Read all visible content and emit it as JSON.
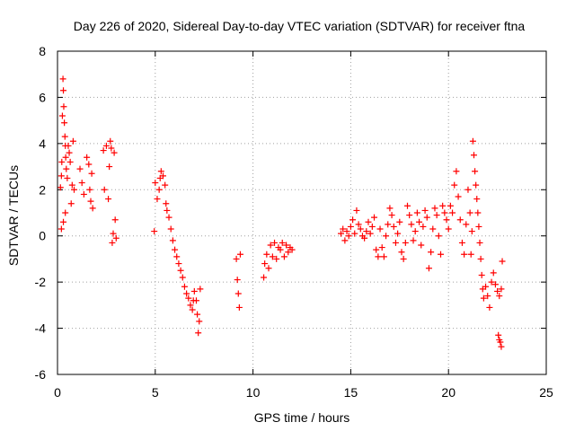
{
  "chart_data": {
    "type": "scatter",
    "title": "Day 226 of 2020, Sidereal Day-to-day VTEC variation (SDTVAR) for receiver ftna",
    "xlabel": "GPS time / hours",
    "ylabel": "SDTVAR / TECUs",
    "xlim": [
      0,
      25
    ],
    "ylim": [
      -6,
      8
    ],
    "xticks": [
      0,
      5,
      10,
      15,
      20,
      25
    ],
    "yticks": [
      -6,
      -4,
      -2,
      0,
      2,
      4,
      6,
      8
    ],
    "grid": true,
    "marker": "plus",
    "color": "#ff0000",
    "series": [
      {
        "name": "SDTVAR",
        "points": [
          [
            0.15,
            2.1
          ],
          [
            0.2,
            2.6
          ],
          [
            0.22,
            3.2
          ],
          [
            0.25,
            5.2
          ],
          [
            0.28,
            6.8
          ],
          [
            0.3,
            6.3
          ],
          [
            0.32,
            5.6
          ],
          [
            0.35,
            4.9
          ],
          [
            0.38,
            4.3
          ],
          [
            0.4,
            3.9
          ],
          [
            0.42,
            3.4
          ],
          [
            0.45,
            2.9
          ],
          [
            0.2,
            0.3
          ],
          [
            0.3,
            0.6
          ],
          [
            0.4,
            1.0
          ],
          [
            0.5,
            2.5
          ],
          [
            0.55,
            3.9
          ],
          [
            0.6,
            3.6
          ],
          [
            0.65,
            3.2
          ],
          [
            0.7,
            1.4
          ],
          [
            0.75,
            2.2
          ],
          [
            0.8,
            4.1
          ],
          [
            0.85,
            2.0
          ],
          [
            1.15,
            2.9
          ],
          [
            1.25,
            2.3
          ],
          [
            1.35,
            1.8
          ],
          [
            1.5,
            3.4
          ],
          [
            1.6,
            3.1
          ],
          [
            1.65,
            2.0
          ],
          [
            1.7,
            1.5
          ],
          [
            1.75,
            2.7
          ],
          [
            1.8,
            1.2
          ],
          [
            2.35,
            3.7
          ],
          [
            2.4,
            2.0
          ],
          [
            2.5,
            3.9
          ],
          [
            2.6,
            1.6
          ],
          [
            2.65,
            3.0
          ],
          [
            2.7,
            4.1
          ],
          [
            2.75,
            3.8
          ],
          [
            2.8,
            -0.3
          ],
          [
            2.85,
            0.1
          ],
          [
            2.9,
            3.6
          ],
          [
            2.95,
            0.7
          ],
          [
            3.0,
            -0.1
          ],
          [
            4.95,
            0.2
          ],
          [
            5.0,
            2.3
          ],
          [
            5.1,
            1.6
          ],
          [
            5.2,
            2.0
          ],
          [
            5.25,
            2.5
          ],
          [
            5.3,
            2.8
          ],
          [
            5.4,
            2.6
          ],
          [
            5.5,
            2.2
          ],
          [
            5.55,
            1.4
          ],
          [
            5.6,
            1.1
          ],
          [
            5.7,
            0.8
          ],
          [
            5.8,
            0.3
          ],
          [
            5.9,
            -0.2
          ],
          [
            6.0,
            -0.6
          ],
          [
            6.1,
            -0.9
          ],
          [
            6.2,
            -1.2
          ],
          [
            6.3,
            -1.5
          ],
          [
            6.4,
            -1.8
          ],
          [
            6.5,
            -2.2
          ],
          [
            6.6,
            -2.5
          ],
          [
            6.7,
            -2.7
          ],
          [
            6.8,
            -3.0
          ],
          [
            6.9,
            -3.2
          ],
          [
            6.95,
            -2.8
          ],
          [
            7.0,
            -2.4
          ],
          [
            7.1,
            -2.8
          ],
          [
            7.15,
            -3.4
          ],
          [
            7.2,
            -4.2
          ],
          [
            7.25,
            -3.7
          ],
          [
            7.3,
            -2.3
          ],
          [
            9.15,
            -1.0
          ],
          [
            9.2,
            -1.9
          ],
          [
            9.25,
            -2.5
          ],
          [
            9.3,
            -3.1
          ],
          [
            9.35,
            -0.8
          ],
          [
            10.55,
            -1.8
          ],
          [
            10.6,
            -1.2
          ],
          [
            10.7,
            -0.8
          ],
          [
            10.8,
            -1.4
          ],
          [
            10.9,
            -0.4
          ],
          [
            11.0,
            -0.9
          ],
          [
            11.1,
            -0.3
          ],
          [
            11.2,
            -1.0
          ],
          [
            11.3,
            -0.5
          ],
          [
            11.4,
            -0.6
          ],
          [
            11.5,
            -0.3
          ],
          [
            11.6,
            -0.9
          ],
          [
            11.7,
            -0.4
          ],
          [
            11.8,
            -0.7
          ],
          [
            11.9,
            -0.5
          ],
          [
            12.0,
            -0.6
          ],
          [
            14.5,
            0.1
          ],
          [
            14.6,
            0.3
          ],
          [
            14.7,
            -0.2
          ],
          [
            14.8,
            0.2
          ],
          [
            14.9,
            0.0
          ],
          [
            15.0,
            0.4
          ],
          [
            15.1,
            0.7
          ],
          [
            15.2,
            0.1
          ],
          [
            15.3,
            1.1
          ],
          [
            15.4,
            0.5
          ],
          [
            15.5,
            0.3
          ],
          [
            15.6,
            0.0
          ],
          [
            15.7,
            -0.1
          ],
          [
            15.8,
            0.2
          ],
          [
            15.9,
            0.6
          ],
          [
            16.0,
            0.1
          ],
          [
            16.1,
            0.4
          ],
          [
            16.2,
            0.8
          ],
          [
            16.3,
            -0.6
          ],
          [
            16.4,
            -0.9
          ],
          [
            16.5,
            0.3
          ],
          [
            16.6,
            -0.5
          ],
          [
            16.7,
            -0.9
          ],
          [
            16.8,
            0.0
          ],
          [
            16.9,
            0.5
          ],
          [
            17.0,
            1.2
          ],
          [
            17.1,
            0.9
          ],
          [
            17.2,
            0.4
          ],
          [
            17.3,
            -0.3
          ],
          [
            17.4,
            0.1
          ],
          [
            17.5,
            0.6
          ],
          [
            17.6,
            -0.7
          ],
          [
            17.7,
            -1.0
          ],
          [
            17.8,
            -0.3
          ],
          [
            17.9,
            1.3
          ],
          [
            18.0,
            0.9
          ],
          [
            18.1,
            0.5
          ],
          [
            18.2,
            -0.2
          ],
          [
            18.3,
            0.2
          ],
          [
            18.4,
            1.0
          ],
          [
            18.5,
            0.6
          ],
          [
            18.6,
            -0.4
          ],
          [
            18.7,
            0.4
          ],
          [
            18.8,
            1.1
          ],
          [
            18.9,
            0.8
          ],
          [
            19.0,
            -1.4
          ],
          [
            19.1,
            -0.7
          ],
          [
            19.2,
            0.3
          ],
          [
            19.3,
            1.2
          ],
          [
            19.4,
            0.9
          ],
          [
            19.5,
            0.0
          ],
          [
            19.6,
            -0.8
          ],
          [
            19.7,
            1.3
          ],
          [
            19.8,
            1.0
          ],
          [
            19.9,
            0.7
          ],
          [
            20.0,
            0.3
          ],
          [
            20.1,
            1.3
          ],
          [
            20.2,
            1.0
          ],
          [
            20.3,
            2.2
          ],
          [
            20.4,
            2.8
          ],
          [
            20.5,
            1.7
          ],
          [
            20.6,
            0.7
          ],
          [
            20.7,
            -0.3
          ],
          [
            20.8,
            -0.8
          ],
          [
            20.9,
            0.5
          ],
          [
            21.0,
            2.0
          ],
          [
            21.1,
            1.0
          ],
          [
            21.15,
            -0.8
          ],
          [
            21.2,
            0.2
          ],
          [
            21.25,
            4.1
          ],
          [
            21.3,
            3.5
          ],
          [
            21.35,
            2.8
          ],
          [
            21.4,
            2.2
          ],
          [
            21.45,
            1.6
          ],
          [
            21.5,
            1.0
          ],
          [
            21.55,
            0.4
          ],
          [
            21.6,
            -0.3
          ],
          [
            21.65,
            -1.0
          ],
          [
            21.7,
            -1.7
          ],
          [
            21.75,
            -2.3
          ],
          [
            21.8,
            -2.7
          ],
          [
            21.9,
            -2.2
          ],
          [
            22.0,
            -2.6
          ],
          [
            22.1,
            -3.1
          ],
          [
            22.2,
            -2.0
          ],
          [
            22.3,
            -1.6
          ],
          [
            22.4,
            -2.1
          ],
          [
            22.5,
            -2.4
          ],
          [
            22.6,
            -2.6
          ],
          [
            22.7,
            -2.3
          ],
          [
            22.75,
            -1.1
          ],
          [
            22.55,
            -4.3
          ],
          [
            22.6,
            -4.5
          ],
          [
            22.65,
            -4.6
          ],
          [
            22.7,
            -4.8
          ]
        ]
      }
    ]
  }
}
